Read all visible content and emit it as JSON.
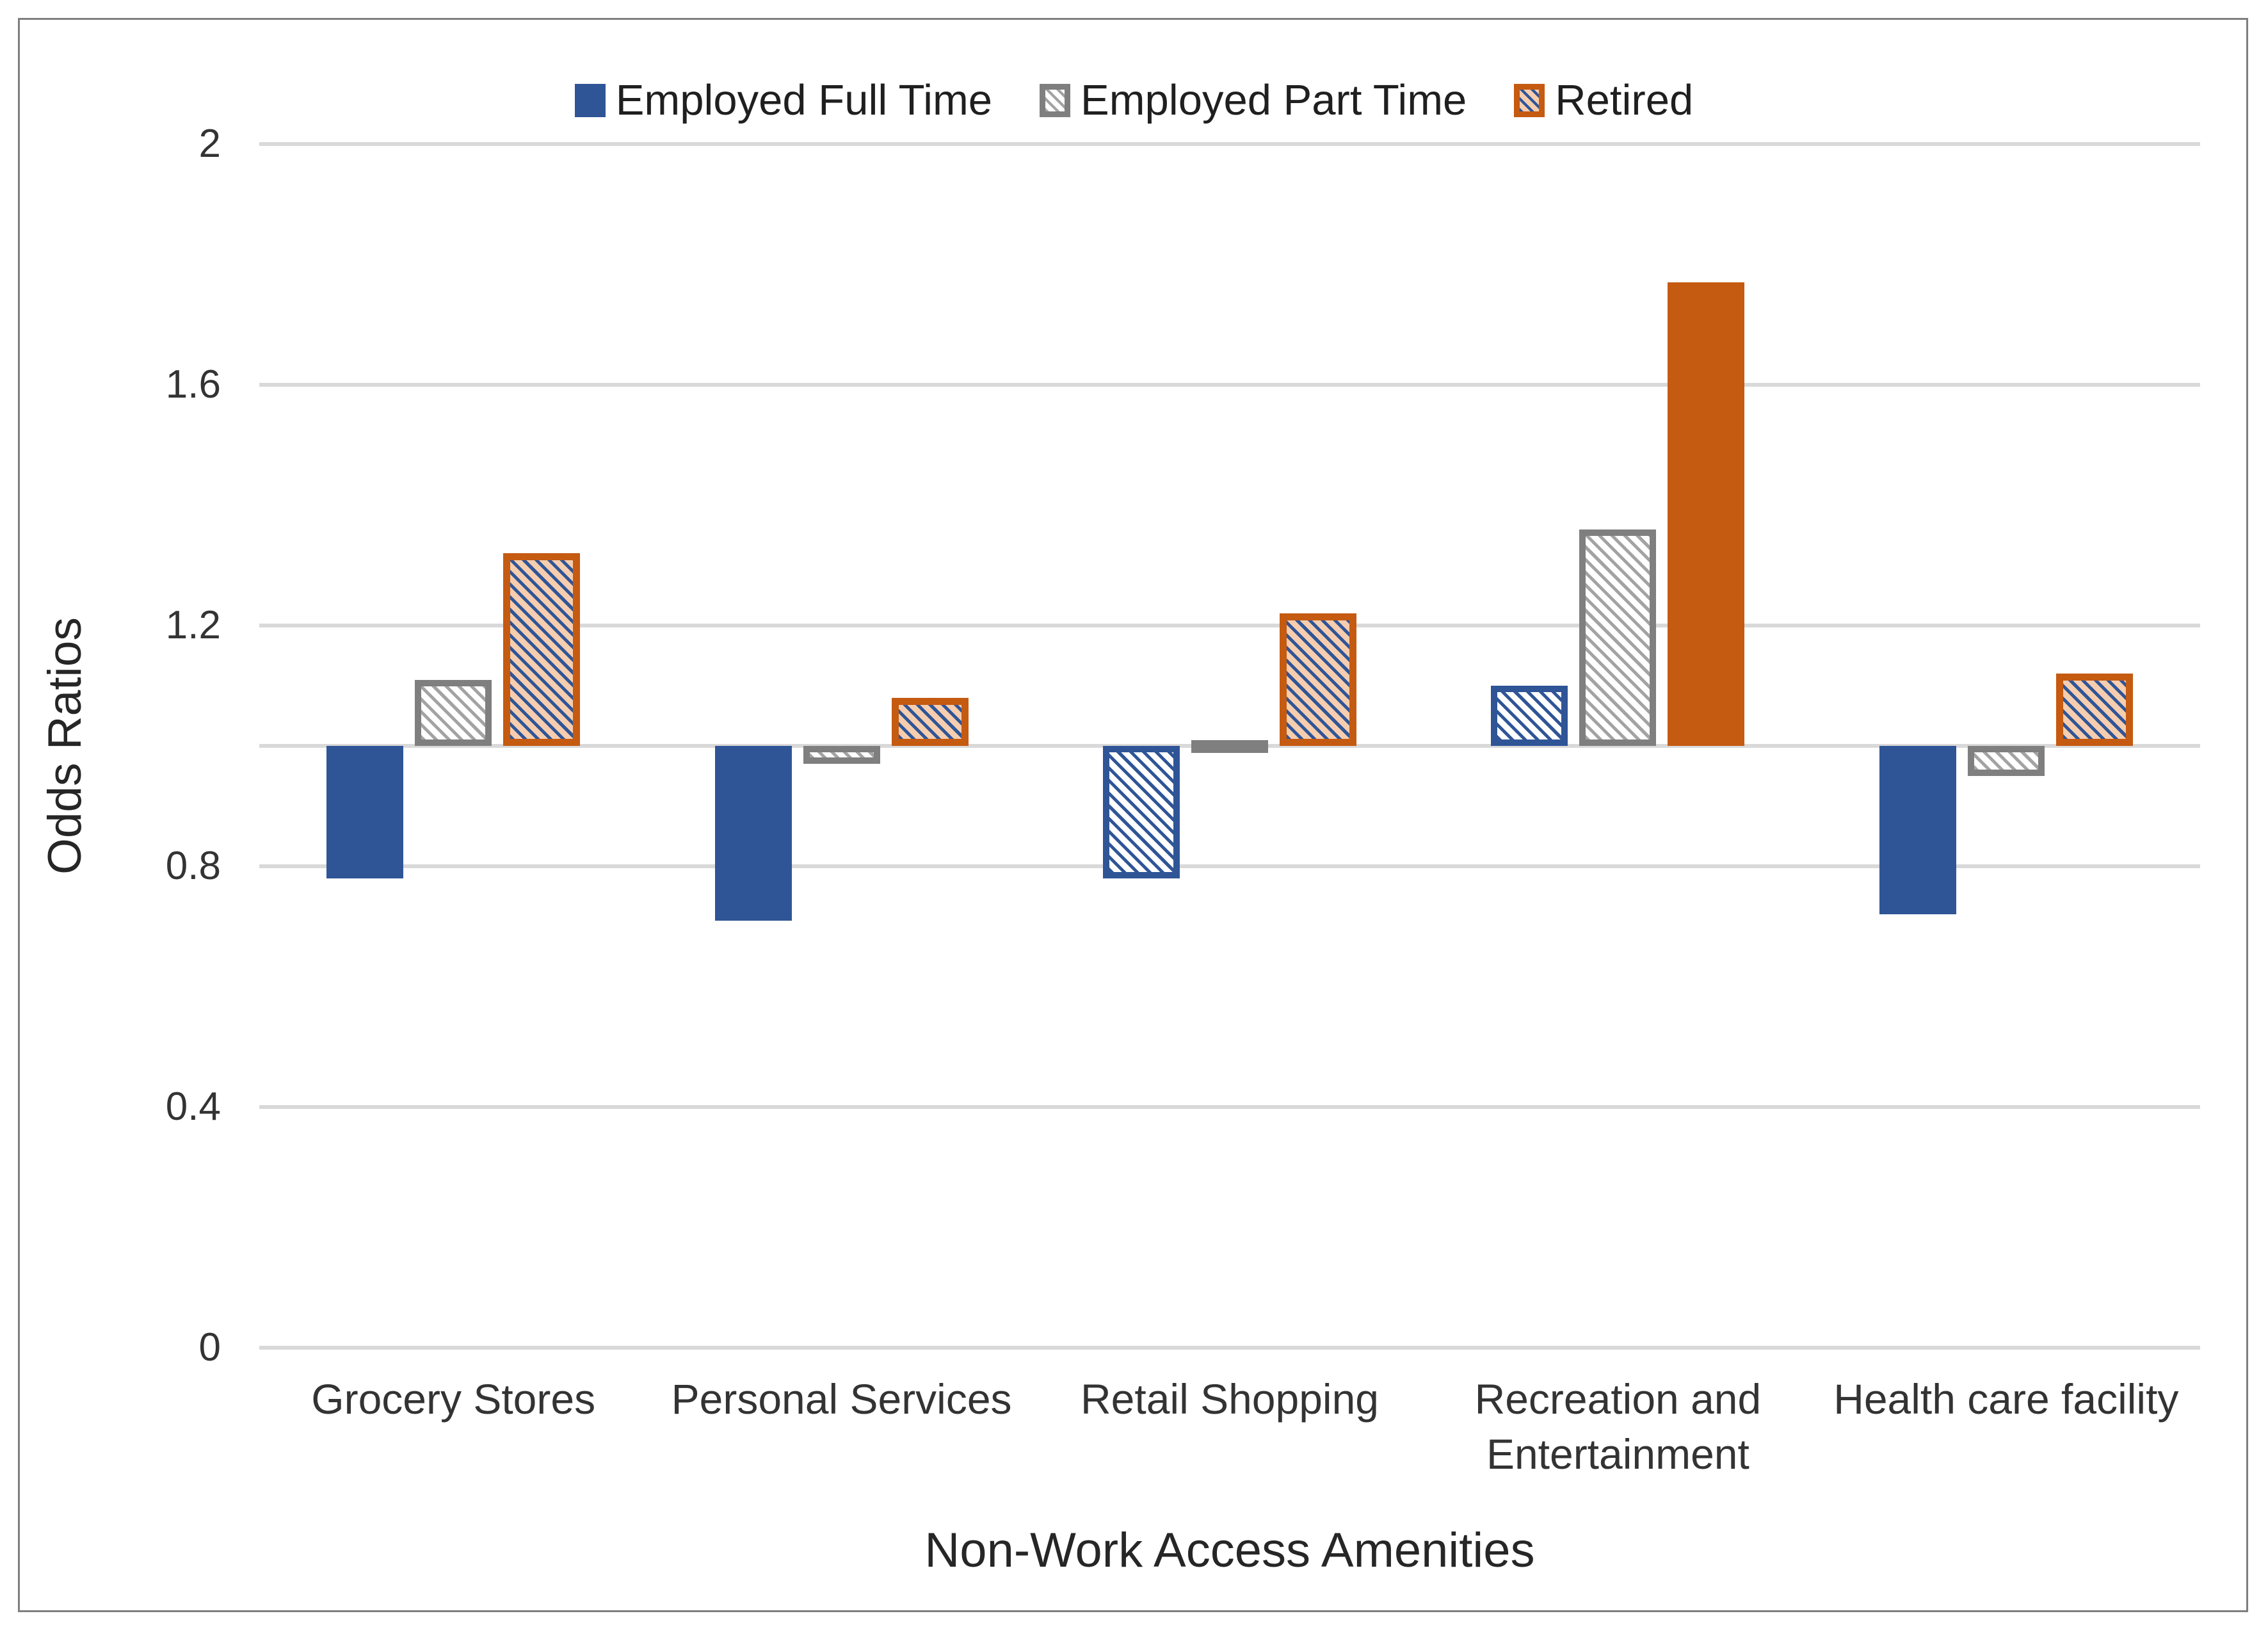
{
  "chart_data": {
    "type": "bar",
    "title": "",
    "xlabel": "Non-Work Access Amenities",
    "ylabel": "Odds Ratios",
    "categories": [
      "Grocery Stores",
      "Personal Services",
      "Retail Shopping",
      "Recreation and Entertainment",
      "Health care facility"
    ],
    "series": [
      {
        "name": "Employed Full Time",
        "key": "ft",
        "color": "#2F5597",
        "values": [
          0.78,
          0.71,
          0.78,
          1.1,
          0.72
        ],
        "fill_styles": [
          "solid",
          "solid",
          "pattern",
          "pattern",
          "solid"
        ],
        "legend_swatch": "solid"
      },
      {
        "name": "Employed Part Time",
        "key": "pt",
        "color": "#7F7F7F",
        "values": [
          1.11,
          0.97,
          1.01,
          1.36,
          0.95
        ],
        "fill_styles": [
          "pattern",
          "pattern",
          "pattern",
          "pattern",
          "pattern"
        ],
        "legend_swatch": "pattern"
      },
      {
        "name": "Retired",
        "key": "ret",
        "color": "#C55A11",
        "values": [
          1.32,
          1.08,
          1.22,
          1.77,
          1.12
        ],
        "fill_styles": [
          "pattern",
          "pattern",
          "pattern",
          "solid",
          "pattern"
        ],
        "legend_swatch": "pattern"
      }
    ],
    "baseline": 1.0,
    "ylim": [
      0,
      2
    ],
    "yticks": [
      2,
      1.6,
      1.2,
      0.8,
      0.4,
      0
    ],
    "ytick_labels": [
      "2",
      "1.6",
      "1.2",
      "0.8",
      "0.4",
      "0"
    ],
    "grid": true,
    "legend_position": "top",
    "bar_orientation": "vertical-from-baseline"
  },
  "colors": {
    "blue": "#2F5597",
    "orange": "#C55A11",
    "gray": "#7F7F7F",
    "gray_stripe": "#A3A3A3",
    "peach": "#F6CDAE",
    "grid": "#D9D9D9",
    "text": "#333333",
    "frame": "#7F7F7F"
  }
}
